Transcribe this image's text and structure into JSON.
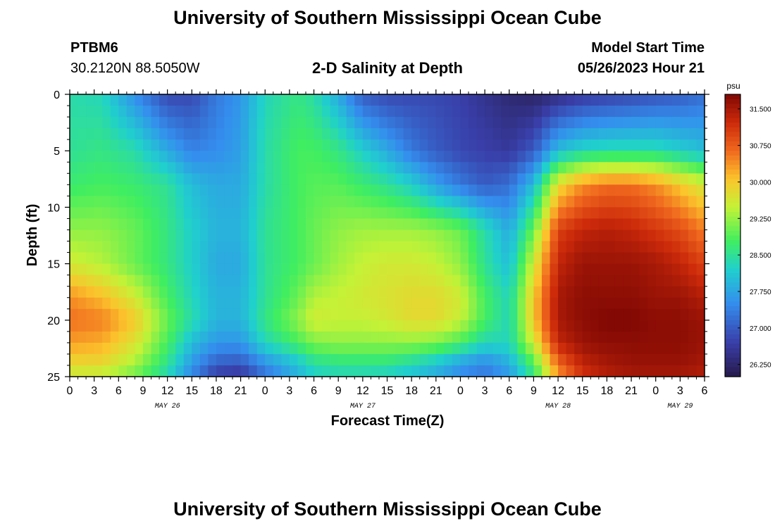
{
  "header": {
    "title": "University of Southern Mississippi Ocean Cube",
    "station_id": "PTBM6",
    "station_coords": "30.2120N  88.5050W",
    "plot_title": "2-D Salinity at Depth",
    "model_label": "Model Start Time",
    "model_time": "05/26/2023 Hour 21"
  },
  "footer": {
    "title": "University of Southern Mississippi Ocean Cube"
  },
  "chart_data": {
    "type": "heatmap",
    "title": "2-D Salinity at Depth",
    "xlabel": "Forecast Time(Z)",
    "ylabel": "Depth (ft)",
    "colorbar_unit": "psu",
    "x_tick_labels": [
      "0",
      "3",
      "6",
      "9",
      "12",
      "15",
      "18",
      "21",
      "0",
      "3",
      "6",
      "9",
      "12",
      "15",
      "18",
      "21",
      "0",
      "3",
      "6",
      "9",
      "12",
      "15",
      "18",
      "21",
      "0",
      "3",
      "6"
    ],
    "date_labels": [
      {
        "text": "MAY 26",
        "tick_index": 4
      },
      {
        "text": "MAY 27",
        "tick_index": 12
      },
      {
        "text": "MAY 28",
        "tick_index": 20
      },
      {
        "text": "MAY 29",
        "tick_index": 25
      }
    ],
    "y_tick_labels": [
      "0",
      "5",
      "10",
      "15",
      "20",
      "25"
    ],
    "y_range": [
      0,
      25
    ],
    "x_range_hours": [
      0,
      78
    ],
    "colorbar_ticks": [
      "31.500",
      "30.750",
      "30.000",
      "29.250",
      "28.500",
      "27.750",
      "27.000",
      "26.250"
    ],
    "value_range": [
      26.0,
      31.8
    ],
    "depth_levels": [
      0,
      5,
      8,
      12,
      15,
      18,
      20,
      22,
      24,
      25
    ],
    "time_hours": [
      0,
      4,
      8,
      12,
      15,
      18,
      21,
      24,
      28,
      30,
      33,
      36,
      39,
      42,
      45,
      48,
      51,
      54,
      57,
      60,
      63,
      66,
      69,
      72,
      75,
      78
    ],
    "salinity_psu": [
      [
        28.4,
        28.3,
        27.5,
        26.8,
        26.8,
        27.3,
        27.6,
        28.3,
        28.6,
        28.4,
        27.8,
        27.0,
        26.8,
        26.8,
        26.8,
        26.7,
        26.5,
        26.3,
        26.2,
        26.4,
        26.6,
        26.7,
        26.8,
        26.9,
        27.0,
        27.2
      ],
      [
        28.5,
        28.6,
        28.4,
        27.8,
        27.4,
        27.5,
        27.7,
        28.4,
        28.8,
        28.8,
        28.6,
        28.2,
        27.8,
        27.3,
        27.0,
        26.8,
        26.7,
        26.6,
        27.0,
        28.0,
        28.3,
        28.4,
        28.4,
        28.4,
        28.2,
        28.0
      ],
      [
        28.7,
        28.8,
        28.7,
        28.5,
        28.0,
        27.8,
        27.8,
        28.4,
        28.8,
        28.9,
        28.9,
        28.7,
        28.5,
        28.2,
        27.7,
        27.3,
        27.0,
        27.2,
        28.0,
        29.8,
        30.4,
        30.6,
        30.6,
        30.4,
        30.0,
        29.6
      ],
      [
        29.2,
        29.2,
        29.0,
        28.6,
        28.2,
        27.9,
        27.9,
        28.5,
        28.8,
        29.0,
        29.2,
        29.3,
        29.3,
        29.3,
        29.2,
        29.0,
        28.4,
        27.8,
        29.0,
        31.0,
        31.3,
        31.4,
        31.3,
        31.1,
        30.9,
        30.5
      ],
      [
        29.6,
        29.4,
        29.0,
        28.6,
        28.2,
        27.8,
        27.8,
        28.5,
        28.8,
        29.0,
        29.3,
        29.5,
        29.6,
        29.6,
        29.5,
        29.2,
        28.5,
        28.0,
        29.6,
        31.3,
        31.6,
        31.6,
        31.6,
        31.5,
        31.3,
        31.0
      ],
      [
        30.4,
        30.1,
        29.6,
        28.8,
        28.3,
        27.9,
        27.9,
        28.5,
        29.0,
        29.4,
        29.5,
        29.6,
        29.7,
        29.8,
        29.8,
        29.6,
        28.8,
        28.3,
        30.0,
        31.5,
        31.7,
        31.7,
        31.7,
        31.6,
        31.6,
        31.4
      ],
      [
        30.6,
        30.5,
        30.0,
        29.0,
        28.4,
        27.9,
        27.9,
        28.6,
        29.2,
        29.6,
        29.5,
        29.5,
        29.6,
        29.8,
        29.8,
        29.5,
        28.8,
        28.3,
        30.0,
        31.5,
        31.7,
        31.8,
        31.8,
        31.7,
        31.7,
        31.6
      ],
      [
        30.3,
        30.2,
        29.7,
        28.8,
        28.0,
        27.6,
        27.6,
        28.3,
        28.8,
        29.1,
        29.2,
        29.2,
        29.2,
        29.2,
        29.1,
        28.8,
        28.3,
        28.3,
        29.6,
        31.3,
        31.6,
        31.7,
        31.7,
        31.7,
        31.7,
        31.6
      ],
      [
        29.8,
        29.8,
        29.3,
        28.5,
        27.6,
        27.0,
        26.9,
        27.5,
        28.0,
        28.4,
        28.5,
        28.5,
        28.5,
        28.3,
        28.0,
        27.6,
        27.4,
        27.8,
        28.8,
        30.6,
        31.3,
        31.5,
        31.6,
        31.6,
        31.6,
        31.5
      ],
      [
        29.5,
        29.4,
        29.0,
        28.3,
        27.4,
        26.6,
        26.5,
        27.2,
        27.9,
        28.2,
        28.3,
        28.3,
        28.2,
        28.0,
        27.8,
        27.5,
        27.3,
        27.6,
        28.6,
        30.3,
        31.1,
        31.4,
        31.5,
        31.5,
        31.5,
        31.4
      ]
    ]
  }
}
